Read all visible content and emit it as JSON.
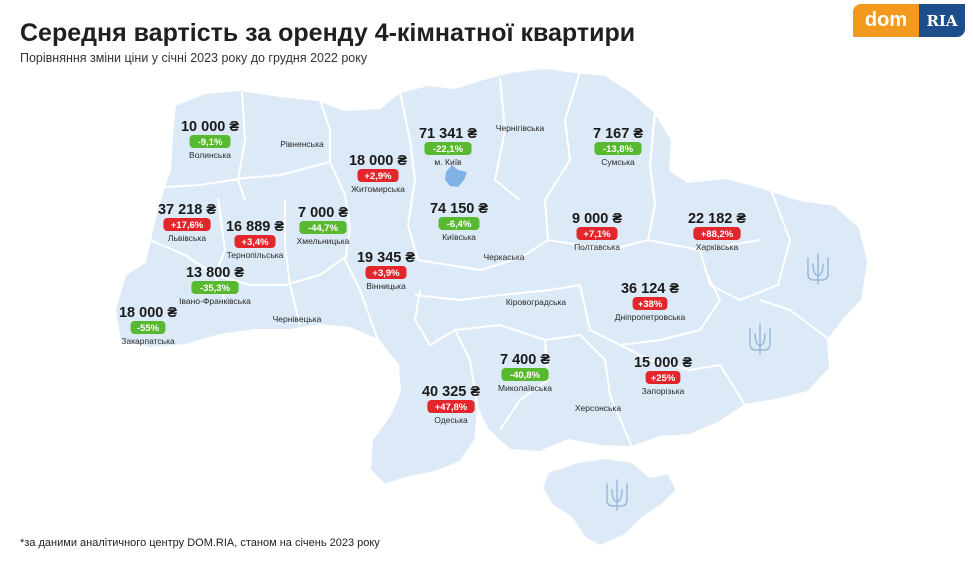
{
  "title": "Середня вартість за оренду 4-кімнатної квартири",
  "subtitle": "Порівняння зміни ціни у січні 2023 року до грудня 2022 року",
  "footnote": "*за даними аналітичного центру DOM.RIA, станом на січень 2023 року",
  "logo": {
    "left": "dom",
    "right": "RIA"
  },
  "colors": {
    "land": "#dce9f6",
    "border": "#ffffff",
    "kyiv_city": "#7fb3e6",
    "positive": "#e3262b",
    "negative": "#58b82f",
    "emblem": "#9dbbdd"
  },
  "regions_with_data": [
    {
      "name": "Волинська",
      "price": "10 000 ₴",
      "change": "-9,1%",
      "direction": "down"
    },
    {
      "name": "м. Київ",
      "price": "71 341 ₴",
      "change": "-22,1%",
      "direction": "down"
    },
    {
      "name": "Сумська",
      "price": "7 167 ₴",
      "change": "-13,8%",
      "direction": "down"
    },
    {
      "name": "Житомирська",
      "price": "18 000 ₴",
      "change": "+2,9%",
      "direction": "up"
    },
    {
      "name": "Львівська",
      "price": "37 218 ₴",
      "change": "+17,6%",
      "direction": "up"
    },
    {
      "name": "Тернопільська",
      "price": "16 889 ₴",
      "change": "+3,4%",
      "direction": "up"
    },
    {
      "name": "Хмельницька",
      "price": "7 000 ₴",
      "change": "-44,7%",
      "direction": "down"
    },
    {
      "name": "Київська",
      "price": "74 150 ₴",
      "change": "-6,4%",
      "direction": "down"
    },
    {
      "name": "Полтавська",
      "price": "9 000 ₴",
      "change": "+7,1%",
      "direction": "up"
    },
    {
      "name": "Харківська",
      "price": "22 182 ₴",
      "change": "+88,2%",
      "direction": "up"
    },
    {
      "name": "Вінницька",
      "price": "19 345 ₴",
      "change": "+3,9%",
      "direction": "up"
    },
    {
      "name": "Івано-Франківська",
      "price": "13 800 ₴",
      "change": "-35,3%",
      "direction": "down"
    },
    {
      "name": "Закарпатська",
      "price": "18 000 ₴",
      "change": "-55%",
      "direction": "down"
    },
    {
      "name": "Дніпропетровська",
      "price": "36 124 ₴",
      "change": "+38%",
      "direction": "up"
    },
    {
      "name": "Миколаївська",
      "price": "7 400 ₴",
      "change": "-40,8%",
      "direction": "down"
    },
    {
      "name": "Одеська",
      "price": "40 325 ₴",
      "change": "+47,8%",
      "direction": "up"
    },
    {
      "name": "Запорізька",
      "price": "15 000 ₴",
      "change": "+25%",
      "direction": "up"
    }
  ],
  "regions_without_data": [
    "Рівненська",
    "Чернігівська",
    "Черкаська",
    "Кіровоградська",
    "Чернівецька",
    "Херсонська"
  ],
  "emblem_icon": "tryzub-icon"
}
